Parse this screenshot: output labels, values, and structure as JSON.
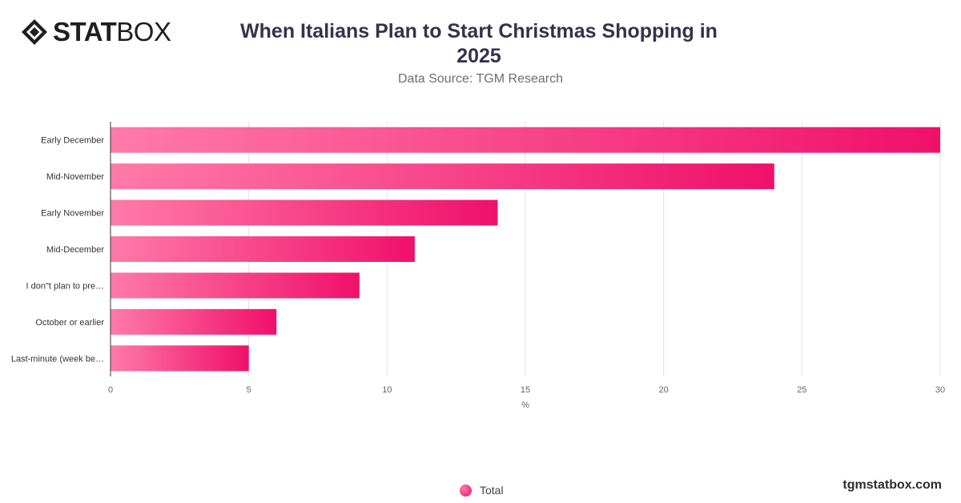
{
  "brand": {
    "name_bold": "STAT",
    "name_light": "BOX",
    "site": "tgmstatbox.com"
  },
  "header": {
    "title": "When Italians Plan to Start Christmas Shopping in 2025",
    "source": "Data Source: TGM Research"
  },
  "colors": {
    "bar_start": "#ff7aa8",
    "bar_end": "#f0106a",
    "grid": "#e2e2e2",
    "axis": "#333333"
  },
  "chart_data": {
    "type": "bar",
    "orientation": "horizontal",
    "title": "When Italians Plan to Start Christmas Shopping in 2025",
    "subtitle": "Data Source: TGM Research",
    "xlabel": "%",
    "ylabel": "",
    "xlim": [
      0,
      30
    ],
    "ticks": [
      0,
      5,
      10,
      15,
      20,
      25,
      30
    ],
    "grid": true,
    "legend_position": "bottom-center",
    "categories": [
      "Early December",
      "Mid-November",
      "Early November",
      "Mid-December",
      "I don\"t plan to pre…",
      "October or earlier",
      "Last-minute (week be…"
    ],
    "series": [
      {
        "name": "Total",
        "values": [
          30,
          24,
          14,
          11,
          9,
          6,
          5
        ]
      }
    ]
  }
}
